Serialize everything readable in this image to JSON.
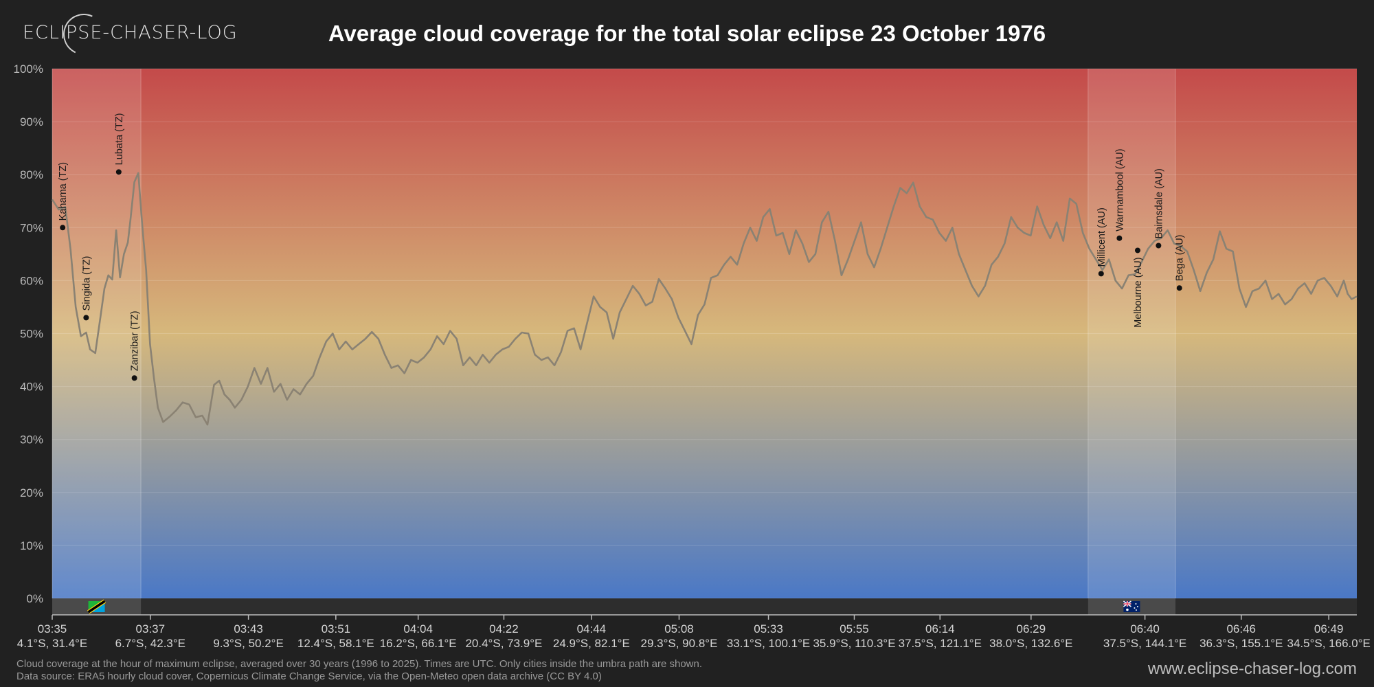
{
  "header": {
    "logo_text": "ECLIPSE-CHASER-LOG",
    "title": "Average cloud coverage for the total solar eclipse 23 October 1976"
  },
  "footer": {
    "note_line1": "Cloud coverage at the hour of maximum eclipse, averaged over 30 years (1996 to 2025). Times are UTC. Only cities inside the umbra path are shown.",
    "note_line2": "Data source: ERA5 hourly cloud cover, Copernicus Climate Change Service, via the Open-Meteo open data archive (CC BY 4.0)",
    "website": "www.eclipse-chaser-log.com"
  },
  "colors": {
    "background": "#212121",
    "gradient_top": "#c44a4a",
    "gradient_mid": "#d6b87c",
    "gradient_bottom": "#4a78c6",
    "line": "#8a8273",
    "highlight_band": "#ffffff"
  },
  "chart_data": {
    "type": "line",
    "title": "Average cloud coverage for the total solar eclipse 23 October 1976",
    "xlabel": "",
    "ylabel": "",
    "ylim": [
      0,
      100
    ],
    "y_ticks": [
      "0%",
      "10%",
      "20%",
      "30%",
      "40%",
      "50%",
      "60%",
      "70%",
      "80%",
      "90%",
      "100%"
    ],
    "grid": true,
    "x_range": [
      0,
      100
    ],
    "x_ticks": [
      {
        "x": 0,
        "time": "03:35",
        "coord": "4.1°S, 31.4°E"
      },
      {
        "x": 7.52,
        "time": "03:37",
        "coord": "6.7°S, 42.3°E"
      },
      {
        "x": 15.04,
        "time": "03:43",
        "coord": "9.3°S, 50.2°E"
      },
      {
        "x": 21.74,
        "time": "03:51",
        "coord": "12.4°S, 58.1°E"
      },
      {
        "x": 28.05,
        "time": "04:04",
        "coord": "16.2°S, 66.1°E"
      },
      {
        "x": 34.62,
        "time": "04:22",
        "coord": "20.4°S, 73.9°E"
      },
      {
        "x": 41.33,
        "time": "04:44",
        "coord": "24.9°S, 82.1°E"
      },
      {
        "x": 48.05,
        "time": "05:08",
        "coord": "29.3°S, 90.8°E"
      },
      {
        "x": 54.9,
        "time": "05:33",
        "coord": "33.1°S, 100.1°E"
      },
      {
        "x": 61.48,
        "time": "05:55",
        "coord": "35.9°S, 110.3°E"
      },
      {
        "x": 68.05,
        "time": "06:14",
        "coord": "37.5°S, 121.1°E"
      },
      {
        "x": 75.03,
        "time": "06:29",
        "coord": "38.0°S, 132.6°E"
      },
      {
        "x": 83.76,
        "time": "06:40",
        "coord": "37.5°S, 144.1°E"
      },
      {
        "x": 91.14,
        "time": "06:46",
        "coord": "36.3°S, 155.1°E"
      },
      {
        "x": 97.85,
        "time": "06:49",
        "coord": "34.5°S, 166.0°E"
      }
    ],
    "country_bands": [
      {
        "start": -0.5,
        "end": 6.8,
        "flag": "tanzania-flag"
      },
      {
        "start": 79.4,
        "end": 86.1,
        "flag": "australia-flag"
      }
    ],
    "series": [
      {
        "values": [
          [
            0,
            75.3
          ],
          [
            0.5,
            73.4
          ],
          [
            1,
            73.9
          ],
          [
            1.4,
            66
          ],
          [
            1.8,
            55
          ],
          [
            2.2,
            49.5
          ],
          [
            2.6,
            50.2
          ],
          [
            2.9,
            47
          ],
          [
            3.3,
            46.3
          ],
          [
            3.7,
            53.2
          ],
          [
            4,
            58.5
          ],
          [
            4.3,
            61
          ],
          [
            4.6,
            60.2
          ],
          [
            4.9,
            69.5
          ],
          [
            5.2,
            60.6
          ],
          [
            5.5,
            65
          ],
          [
            5.8,
            67.2
          ],
          [
            6,
            71.5
          ],
          [
            6.3,
            78.6
          ],
          [
            6.6,
            80.3
          ],
          [
            6.9,
            70.5
          ],
          [
            7.2,
            62
          ],
          [
            7.5,
            48
          ],
          [
            7.8,
            41.6
          ],
          [
            8.1,
            36
          ],
          [
            8.5,
            33.3
          ],
          [
            9,
            34.3
          ],
          [
            9.5,
            35.5
          ],
          [
            10,
            37
          ],
          [
            10.5,
            36.6
          ],
          [
            11,
            34.2
          ],
          [
            11.5,
            34.5
          ],
          [
            11.9,
            32.8
          ],
          [
            12.4,
            40.3
          ],
          [
            12.8,
            41.1
          ],
          [
            13.2,
            38.5
          ],
          [
            13.6,
            37.5
          ],
          [
            14,
            36
          ],
          [
            14.5,
            37.5
          ],
          [
            15,
            40
          ],
          [
            15.5,
            43.5
          ],
          [
            16,
            40.5
          ],
          [
            16.5,
            43.5
          ],
          [
            17,
            39
          ],
          [
            17.5,
            40.5
          ],
          [
            18,
            37.5
          ],
          [
            18.5,
            39.5
          ],
          [
            19,
            38.5
          ],
          [
            19.5,
            40.5
          ],
          [
            20,
            42
          ],
          [
            20.5,
            45.5
          ],
          [
            21,
            48.5
          ],
          [
            21.5,
            50
          ],
          [
            22,
            47
          ],
          [
            22.5,
            48.5
          ],
          [
            23,
            47
          ],
          [
            23.5,
            48
          ],
          [
            24,
            49
          ],
          [
            24.5,
            50.3
          ],
          [
            25,
            49
          ],
          [
            25.5,
            46
          ],
          [
            26,
            43.5
          ],
          [
            26.5,
            44
          ],
          [
            27,
            42.5
          ],
          [
            27.5,
            45
          ],
          [
            28,
            44.5
          ],
          [
            28.5,
            45.5
          ],
          [
            29,
            47
          ],
          [
            29.5,
            49.5
          ],
          [
            30,
            48
          ],
          [
            30.5,
            50.5
          ],
          [
            31,
            49
          ],
          [
            31.5,
            44
          ],
          [
            32,
            45.5
          ],
          [
            32.5,
            44
          ],
          [
            33,
            46
          ],
          [
            33.5,
            44.5
          ],
          [
            34,
            46
          ],
          [
            34.5,
            47
          ],
          [
            35,
            47.5
          ],
          [
            35.5,
            49
          ],
          [
            36,
            50.2
          ],
          [
            36.5,
            50
          ],
          [
            37,
            46
          ],
          [
            37.5,
            45
          ],
          [
            38,
            45.5
          ],
          [
            38.5,
            44
          ],
          [
            39,
            46.5
          ],
          [
            39.5,
            50.5
          ],
          [
            40,
            51
          ],
          [
            40.5,
            47
          ],
          [
            41,
            52
          ],
          [
            41.5,
            57
          ],
          [
            42,
            55
          ],
          [
            42.5,
            54
          ],
          [
            43,
            49
          ],
          [
            43.5,
            54
          ],
          [
            44,
            56.5
          ],
          [
            44.5,
            59
          ],
          [
            45,
            57.5
          ],
          [
            45.5,
            55.3
          ],
          [
            46,
            56
          ],
          [
            46.5,
            60.3
          ],
          [
            47,
            58.5
          ],
          [
            47.5,
            56.5
          ],
          [
            48,
            53
          ],
          [
            48.5,
            50.5
          ],
          [
            49,
            48
          ],
          [
            49.5,
            53.5
          ],
          [
            50,
            55.5
          ],
          [
            50.5,
            60.5
          ],
          [
            51,
            61
          ],
          [
            51.5,
            63
          ],
          [
            52,
            64.5
          ],
          [
            52.5,
            63
          ],
          [
            53,
            67
          ],
          [
            53.5,
            70
          ],
          [
            54,
            67.5
          ],
          [
            54.5,
            72
          ],
          [
            55,
            73.5
          ],
          [
            55.5,
            68.5
          ],
          [
            56,
            69
          ],
          [
            56.5,
            65
          ],
          [
            57,
            69.5
          ],
          [
            57.5,
            67
          ],
          [
            58,
            63.5
          ],
          [
            58.5,
            65
          ],
          [
            59,
            71
          ],
          [
            59.5,
            73
          ],
          [
            60,
            67.5
          ],
          [
            60.5,
            61
          ],
          [
            61,
            64
          ],
          [
            61.5,
            67.5
          ],
          [
            62,
            71
          ],
          [
            62.5,
            65
          ],
          [
            63,
            62.5
          ],
          [
            63.5,
            66
          ],
          [
            64,
            70
          ],
          [
            64.5,
            74
          ],
          [
            65,
            77.5
          ],
          [
            65.5,
            76.5
          ],
          [
            66,
            78.5
          ],
          [
            66.5,
            74
          ],
          [
            67,
            72
          ],
          [
            67.5,
            71.5
          ],
          [
            68,
            69
          ],
          [
            68.5,
            67.5
          ],
          [
            69,
            70
          ],
          [
            69.5,
            65
          ],
          [
            70,
            62
          ],
          [
            70.5,
            59
          ],
          [
            71,
            57
          ],
          [
            71.5,
            59
          ],
          [
            72,
            63
          ],
          [
            72.5,
            64.5
          ],
          [
            73,
            67
          ],
          [
            73.5,
            72
          ],
          [
            74,
            70
          ],
          [
            74.5,
            69
          ],
          [
            75,
            68.5
          ],
          [
            75.5,
            74
          ],
          [
            76,
            70.5
          ],
          [
            76.5,
            68
          ],
          [
            77,
            71
          ],
          [
            77.5,
            67.5
          ],
          [
            78,
            75.5
          ],
          [
            78.5,
            74.5
          ],
          [
            79,
            69
          ],
          [
            79.5,
            66
          ],
          [
            80,
            64
          ],
          [
            80.5,
            62
          ],
          [
            81,
            64
          ],
          [
            81.5,
            60
          ],
          [
            82,
            58.5
          ],
          [
            82.5,
            61
          ],
          [
            83,
            61.2
          ],
          [
            83.5,
            63.5
          ],
          [
            84,
            66
          ],
          [
            84.5,
            67.5
          ],
          [
            85,
            68
          ],
          [
            85.5,
            69.5
          ],
          [
            86,
            67
          ],
          [
            86.5,
            66.5
          ],
          [
            87,
            65.5
          ],
          [
            87.5,
            62
          ],
          [
            88,
            58
          ],
          [
            88.5,
            61.5
          ],
          [
            89,
            64
          ],
          [
            89.5,
            69.3
          ],
          [
            90,
            66
          ],
          [
            90.5,
            65.5
          ],
          [
            91,
            58.5
          ],
          [
            91.5,
            55
          ],
          [
            92,
            58
          ],
          [
            92.5,
            58.5
          ],
          [
            93,
            60
          ],
          [
            93.5,
            56.5
          ],
          [
            94,
            57.5
          ],
          [
            94.5,
            55.5
          ],
          [
            95,
            56.5
          ],
          [
            95.5,
            58.5
          ],
          [
            96,
            59.5
          ],
          [
            96.5,
            57.5
          ],
          [
            97,
            60
          ],
          [
            97.5,
            60.5
          ],
          [
            98,
            59
          ],
          [
            98.5,
            57
          ],
          [
            99,
            60
          ],
          [
            99.3,
            57.5
          ],
          [
            99.6,
            56.5
          ],
          [
            100,
            57
          ]
        ]
      }
    ],
    "cities": [
      {
        "name": "Kahama (TZ)",
        "x": 0.8,
        "y": 70,
        "label_side": "up"
      },
      {
        "name": "Singida (TZ)",
        "x": 2.6,
        "y": 53,
        "label_side": "up"
      },
      {
        "name": "Lubata (TZ)",
        "x": 5.1,
        "y": 80.5,
        "label_side": "up"
      },
      {
        "name": "Zanzibar (TZ)",
        "x": 6.3,
        "y": 41.6,
        "label_side": "up"
      },
      {
        "name": "Millicent (AU)",
        "x": 80.4,
        "y": 61.3,
        "label_side": "up"
      },
      {
        "name": "Warrnambool (AU)",
        "x": 81.8,
        "y": 68,
        "label_side": "up"
      },
      {
        "name": "Melbourne (AU)",
        "x": 83.2,
        "y": 65.7,
        "label_side": "down"
      },
      {
        "name": "Bairnsdale (AU)",
        "x": 84.8,
        "y": 66.6,
        "label_side": "up"
      },
      {
        "name": "Bega (AU)",
        "x": 86.4,
        "y": 58.6,
        "label_side": "up"
      }
    ]
  }
}
